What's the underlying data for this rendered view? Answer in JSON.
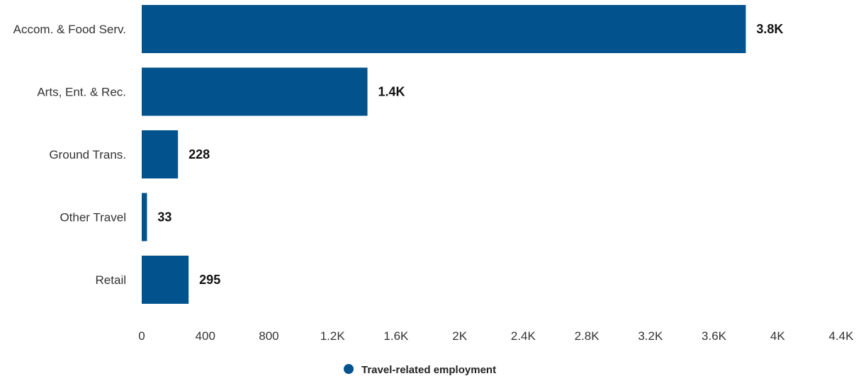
{
  "chart_data": {
    "type": "bar",
    "orientation": "horizontal",
    "title": "",
    "xlabel": "",
    "ylabel": "",
    "categories": [
      "Accom. & Food Serv.",
      "Arts, Ent. & Rec.",
      "Ground Trans.",
      "Other Travel",
      "Retail"
    ],
    "series": [
      {
        "name": "Travel-related employment",
        "values": [
          3800,
          1420,
          228,
          33,
          295
        ],
        "data_labels": [
          "3.8K",
          "1.4K",
          "228",
          "33",
          "295"
        ],
        "color": "#02538d"
      }
    ],
    "xlim": [
      0,
      4400
    ],
    "xticks": [
      0,
      400,
      800,
      1200,
      1600,
      2000,
      2400,
      2800,
      3200,
      3600,
      4000,
      4400
    ],
    "xtick_labels": [
      "0",
      "400",
      "800",
      "1.2K",
      "1.6K",
      "2K",
      "2.4K",
      "2.8K",
      "3.2K",
      "3.6K",
      "4K",
      "4.4K"
    ],
    "grid": false,
    "legend_position": "bottom-center"
  }
}
